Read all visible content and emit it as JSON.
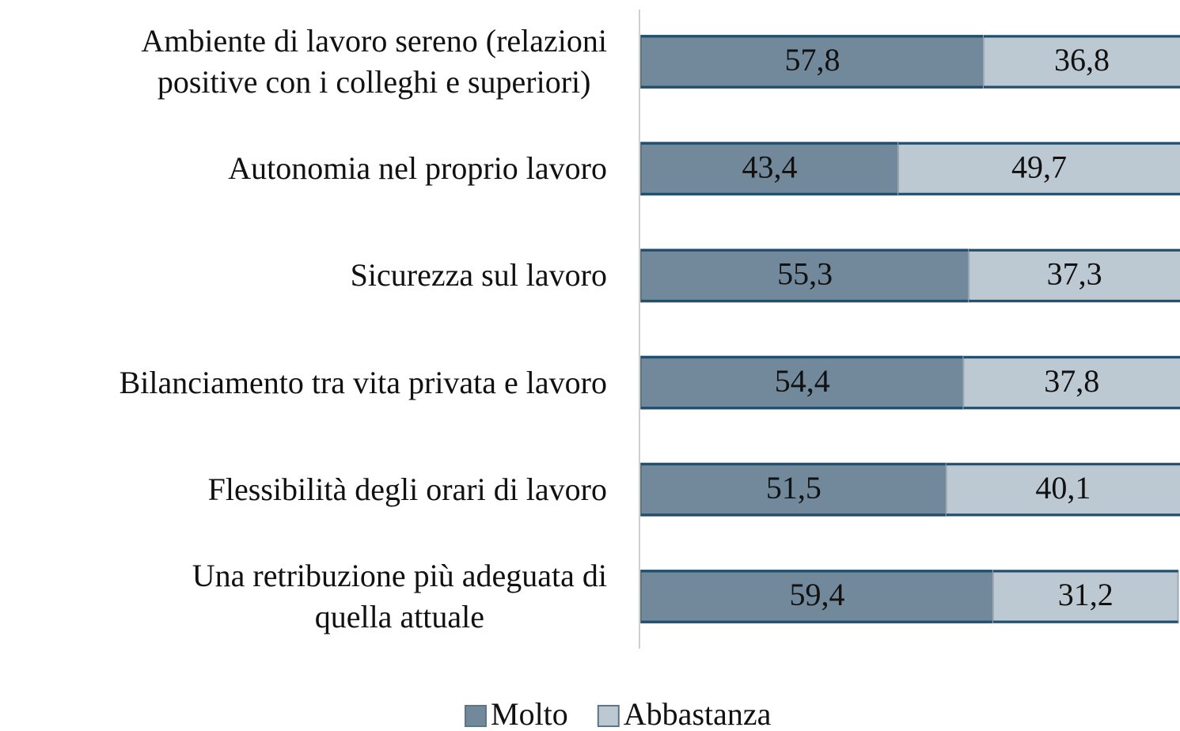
{
  "chart_data": {
    "type": "stacked_bar_horizontal",
    "categories": [
      "Ambiente di lavoro sereno (relazioni\npositive con i colleghi e superiori)",
      "Autonomia nel proprio lavoro",
      "Sicurezza sul lavoro",
      "Bilanciamento tra vita privata e lavoro",
      "Flessibilità degli orari di lavoro",
      "Una retribuzione più adeguata di\nquella attuale"
    ],
    "series": [
      {
        "name": "Molto",
        "color": "#71899a",
        "values": [
          57.8,
          43.4,
          55.3,
          54.4,
          51.5,
          59.4
        ],
        "value_labels": [
          "57,8",
          "43,4",
          "55,3",
          "54,4",
          "51,5",
          "59,4"
        ]
      },
      {
        "name": "Abbastanza",
        "color": "#bdc9d2",
        "values": [
          36.8,
          49.7,
          37.3,
          37.8,
          40.1,
          31.2
        ],
        "value_labels": [
          "36,8",
          "49,7",
          "37,3",
          "37,8",
          "40,1",
          "31,2"
        ]
      }
    ],
    "xlim": [
      0,
      100
    ],
    "legend": "bottom"
  }
}
